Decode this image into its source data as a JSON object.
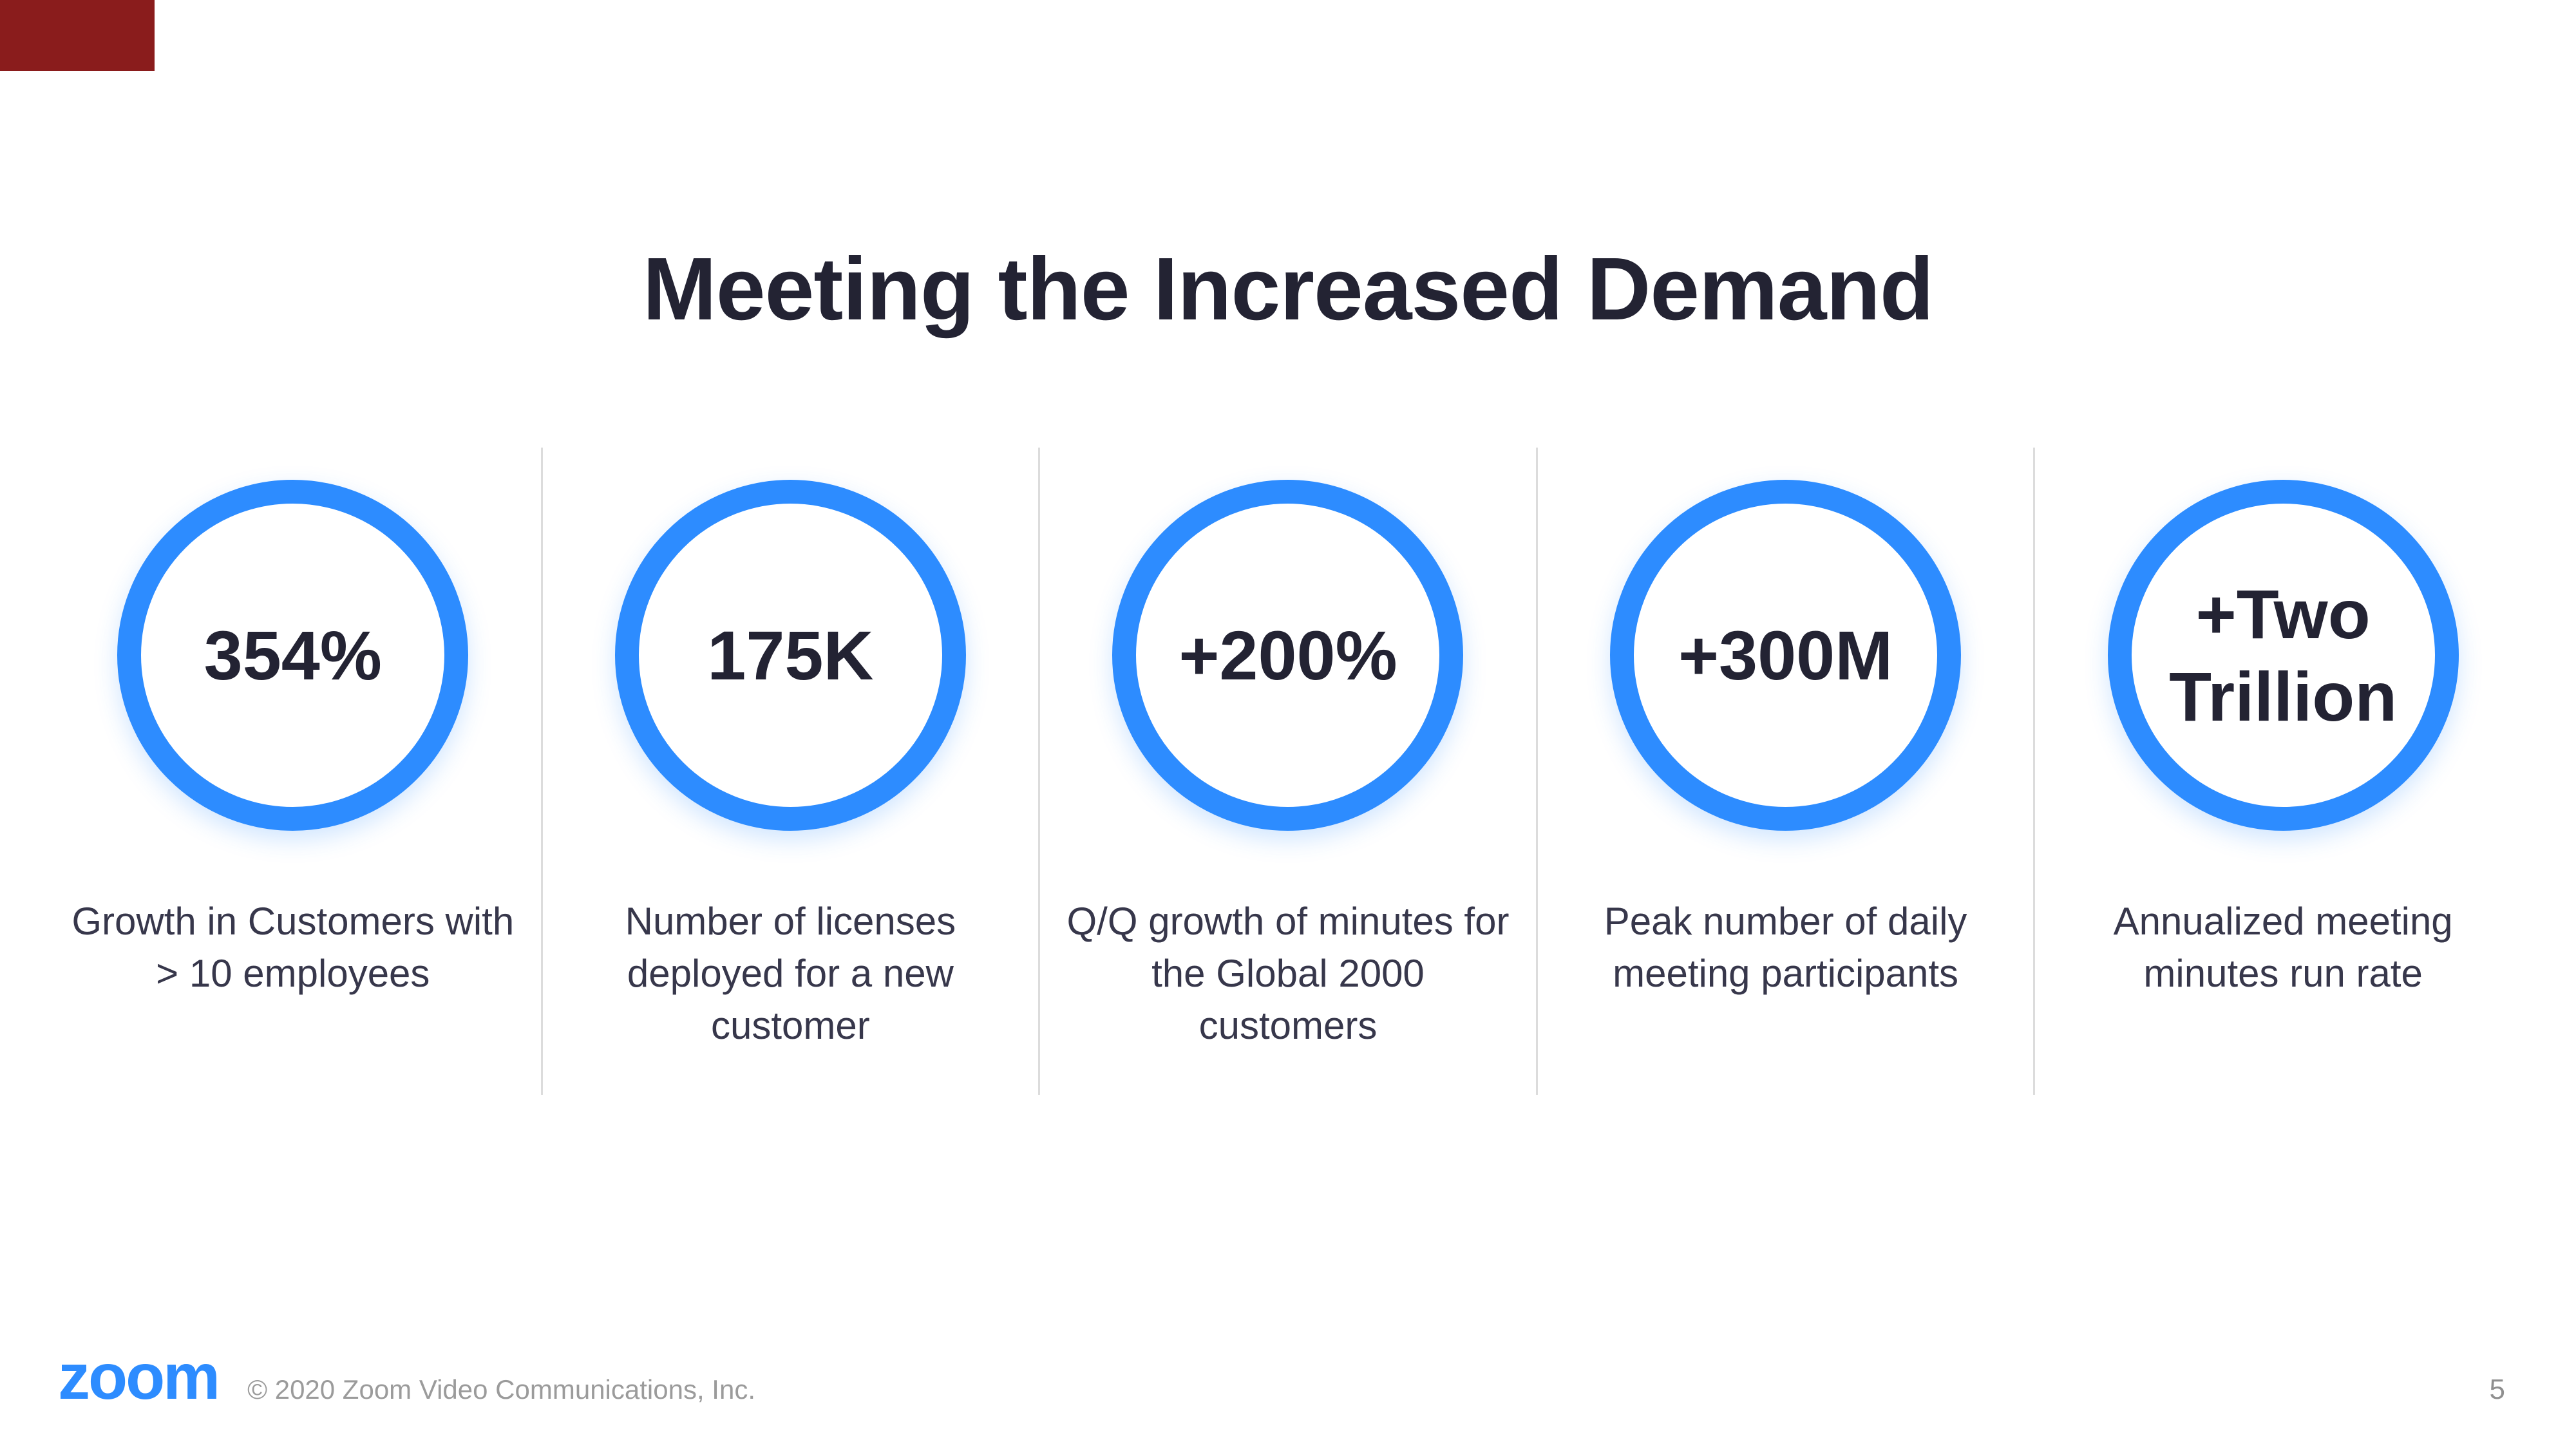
{
  "slide": {
    "title": "Meeting the Increased Demand",
    "stats": [
      {
        "value": "354%",
        "caption": "Growth in Customers with > 10 employees"
      },
      {
        "value": "175K",
        "caption": "Number of licenses deployed for a new customer"
      },
      {
        "value": "+200%",
        "caption": "Q/Q growth of minutes for the Global 2000 customers"
      },
      {
        "value": "+300M",
        "caption": "Peak number of daily meeting participants"
      },
      {
        "value": "+Two Trillion",
        "caption": "Annualized meeting minutes run rate"
      }
    ],
    "footer": {
      "logo_text": "zoom",
      "copyright": "© 2020 Zoom Video Communications, Inc.",
      "page_number": "5"
    },
    "colors": {
      "accent_blue": "#2D8CFF",
      "heading_text": "#232333",
      "caption_text": "#37374B",
      "muted_text": "#9B9B9B",
      "divider": "#DCDCDC",
      "corner_block": "#8A1C1C"
    }
  }
}
